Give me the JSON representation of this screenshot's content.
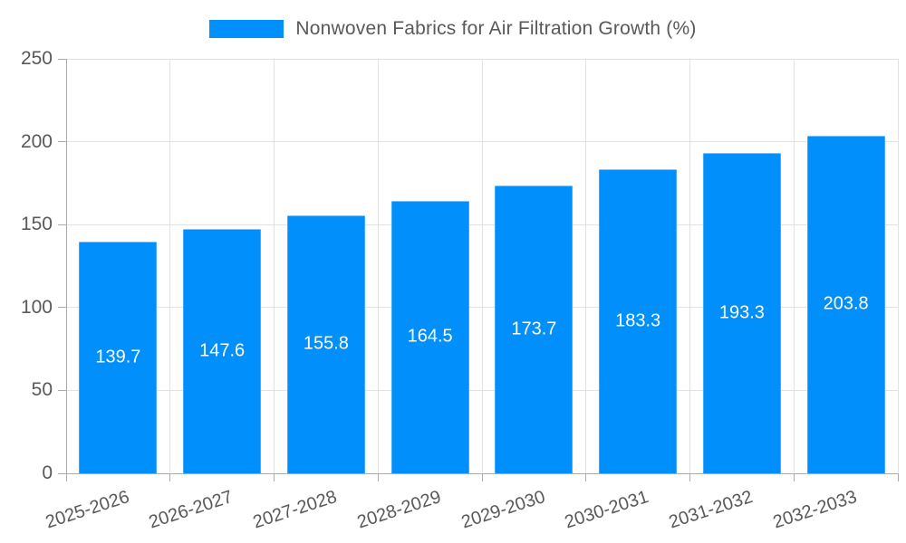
{
  "legend": {
    "label": "Nonwoven Fabrics for Air Filtration Growth (%)"
  },
  "chart_data": {
    "type": "bar",
    "title": "Nonwoven Fabrics for Air Filtration Growth (%)",
    "categories": [
      "2025-2026",
      "2026-2027",
      "2027-2028",
      "2028-2029",
      "2029-2030",
      "2030-2031",
      "2031-2032",
      "2032-2033"
    ],
    "series": [
      {
        "name": "Nonwoven Fabrics for Air Filtration Growth (%)",
        "values": [
          139.7,
          147.6,
          155.8,
          164.5,
          173.7,
          183.3,
          193.3,
          203.8
        ]
      }
    ],
    "value_labels": [
      "139.7",
      "147.6",
      "155.8",
      "164.5",
      "173.7",
      "183.3",
      "193.3",
      "203.8"
    ],
    "xlabel": "",
    "ylabel": "",
    "ylim": [
      0,
      250
    ],
    "yticks": [
      0,
      50,
      100,
      150,
      200,
      250
    ],
    "grid": true,
    "legend_position": "top"
  },
  "colors": {
    "bar": "#008FFB",
    "grid": "#e2e2e2",
    "axis": "#ababab",
    "tick_text": "#595959",
    "value_label_text": "#ffffff",
    "background": "#ffffff"
  }
}
